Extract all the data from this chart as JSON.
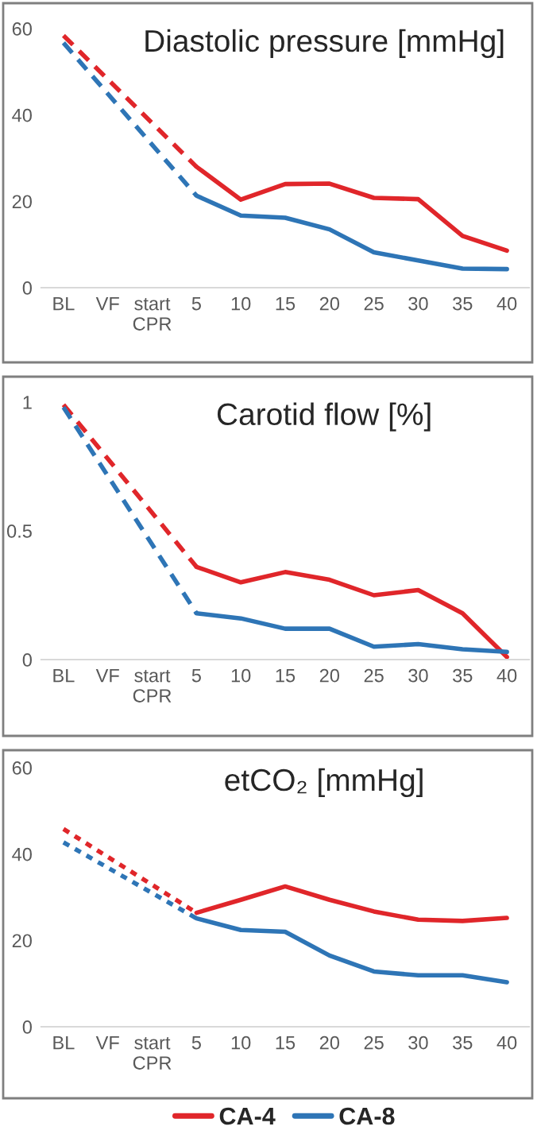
{
  "chart_data": [
    {
      "type": "line",
      "title": "Diastolic pressure [mmHg]",
      "categories": [
        "BL",
        "VF",
        "start\nCPR",
        "5",
        "10",
        "15",
        "20",
        "25",
        "30",
        "35",
        "40"
      ],
      "ylim": [
        0,
        60
      ],
      "yticks": [
        0,
        20,
        40,
        60
      ],
      "grid": false,
      "marker": "none",
      "series": [
        {
          "color": "#e0262a",
          "line_style": "dashed",
          "values": [
            58.4,
            null,
            null,
            28,
            null,
            null,
            null,
            null,
            null,
            null,
            null
          ]
        },
        {
          "color": "#2e75b6",
          "line_style": "dashed",
          "values": [
            56.7,
            null,
            null,
            21.3,
            null,
            null,
            null,
            null,
            null,
            null,
            null
          ]
        },
        {
          "color": "#e0262a",
          "line_style": "solid",
          "values": [
            null,
            null,
            null,
            28,
            20.4,
            24,
            24.1,
            20.8,
            20.5,
            12,
            8.6
          ]
        },
        {
          "color": "#2e75b6",
          "line_style": "solid",
          "values": [
            null,
            null,
            null,
            21.3,
            16.7,
            16.2,
            13.5,
            8.2,
            6.3,
            4.4,
            4.3
          ]
        }
      ]
    },
    {
      "type": "line",
      "title": "Carotid flow [%]",
      "categories": [
        "BL",
        "VF",
        "start\nCPR",
        "5",
        "10",
        "15",
        "20",
        "25",
        "30",
        "35",
        "40"
      ],
      "ylim": [
        0,
        1
      ],
      "yticks": [
        0,
        0.5,
        1
      ],
      "grid": false,
      "marker": "none",
      "series": [
        {
          "color": "#e0262a",
          "line_style": "dashed",
          "values": [
            0.99,
            null,
            null,
            0.36,
            null,
            null,
            null,
            null,
            null,
            null,
            null
          ]
        },
        {
          "color": "#2e75b6",
          "line_style": "dashed",
          "values": [
            0.98,
            null,
            null,
            0.18,
            null,
            null,
            null,
            null,
            null,
            null,
            null
          ]
        },
        {
          "color": "#e0262a",
          "line_style": "solid",
          "values": [
            null,
            null,
            null,
            0.36,
            0.3,
            0.34,
            0.31,
            0.25,
            0.27,
            0.18,
            0.01
          ]
        },
        {
          "color": "#2e75b6",
          "line_style": "solid",
          "values": [
            null,
            null,
            null,
            0.18,
            0.16,
            0.12,
            0.12,
            0.05,
            0.06,
            0.04,
            0.03
          ]
        }
      ]
    },
    {
      "type": "line",
      "title": "etCO₂ [mmHg]",
      "categories": [
        "BL",
        "VF",
        "start\nCPR",
        "5",
        "10",
        "15",
        "20",
        "25",
        "30",
        "35",
        "40"
      ],
      "ylim": [
        0,
        60
      ],
      "yticks": [
        0,
        20,
        40,
        60
      ],
      "grid": false,
      "legend": "bottom",
      "marker": "none",
      "series": [
        {
          "color": "#e0262a",
          "line_style": "dotted",
          "values": [
            45.8,
            null,
            null,
            26.4,
            null,
            null,
            null,
            null,
            null,
            null,
            null
          ]
        },
        {
          "color": "#2e75b6",
          "line_style": "dotted",
          "values": [
            42.7,
            null,
            null,
            25.1,
            null,
            null,
            null,
            null,
            null,
            null,
            null
          ]
        },
        {
          "name": "CA-4",
          "color": "#e0262a",
          "line_style": "solid",
          "values": [
            null,
            null,
            null,
            26.4,
            29.4,
            32.5,
            29.4,
            26.7,
            24.8,
            24.5,
            25.2
          ]
        },
        {
          "name": "CA-8",
          "color": "#2e75b6",
          "line_style": "solid",
          "values": [
            null,
            null,
            null,
            25.1,
            22.4,
            22,
            16.5,
            12.8,
            11.9,
            11.9,
            10.3
          ]
        }
      ]
    }
  ]
}
